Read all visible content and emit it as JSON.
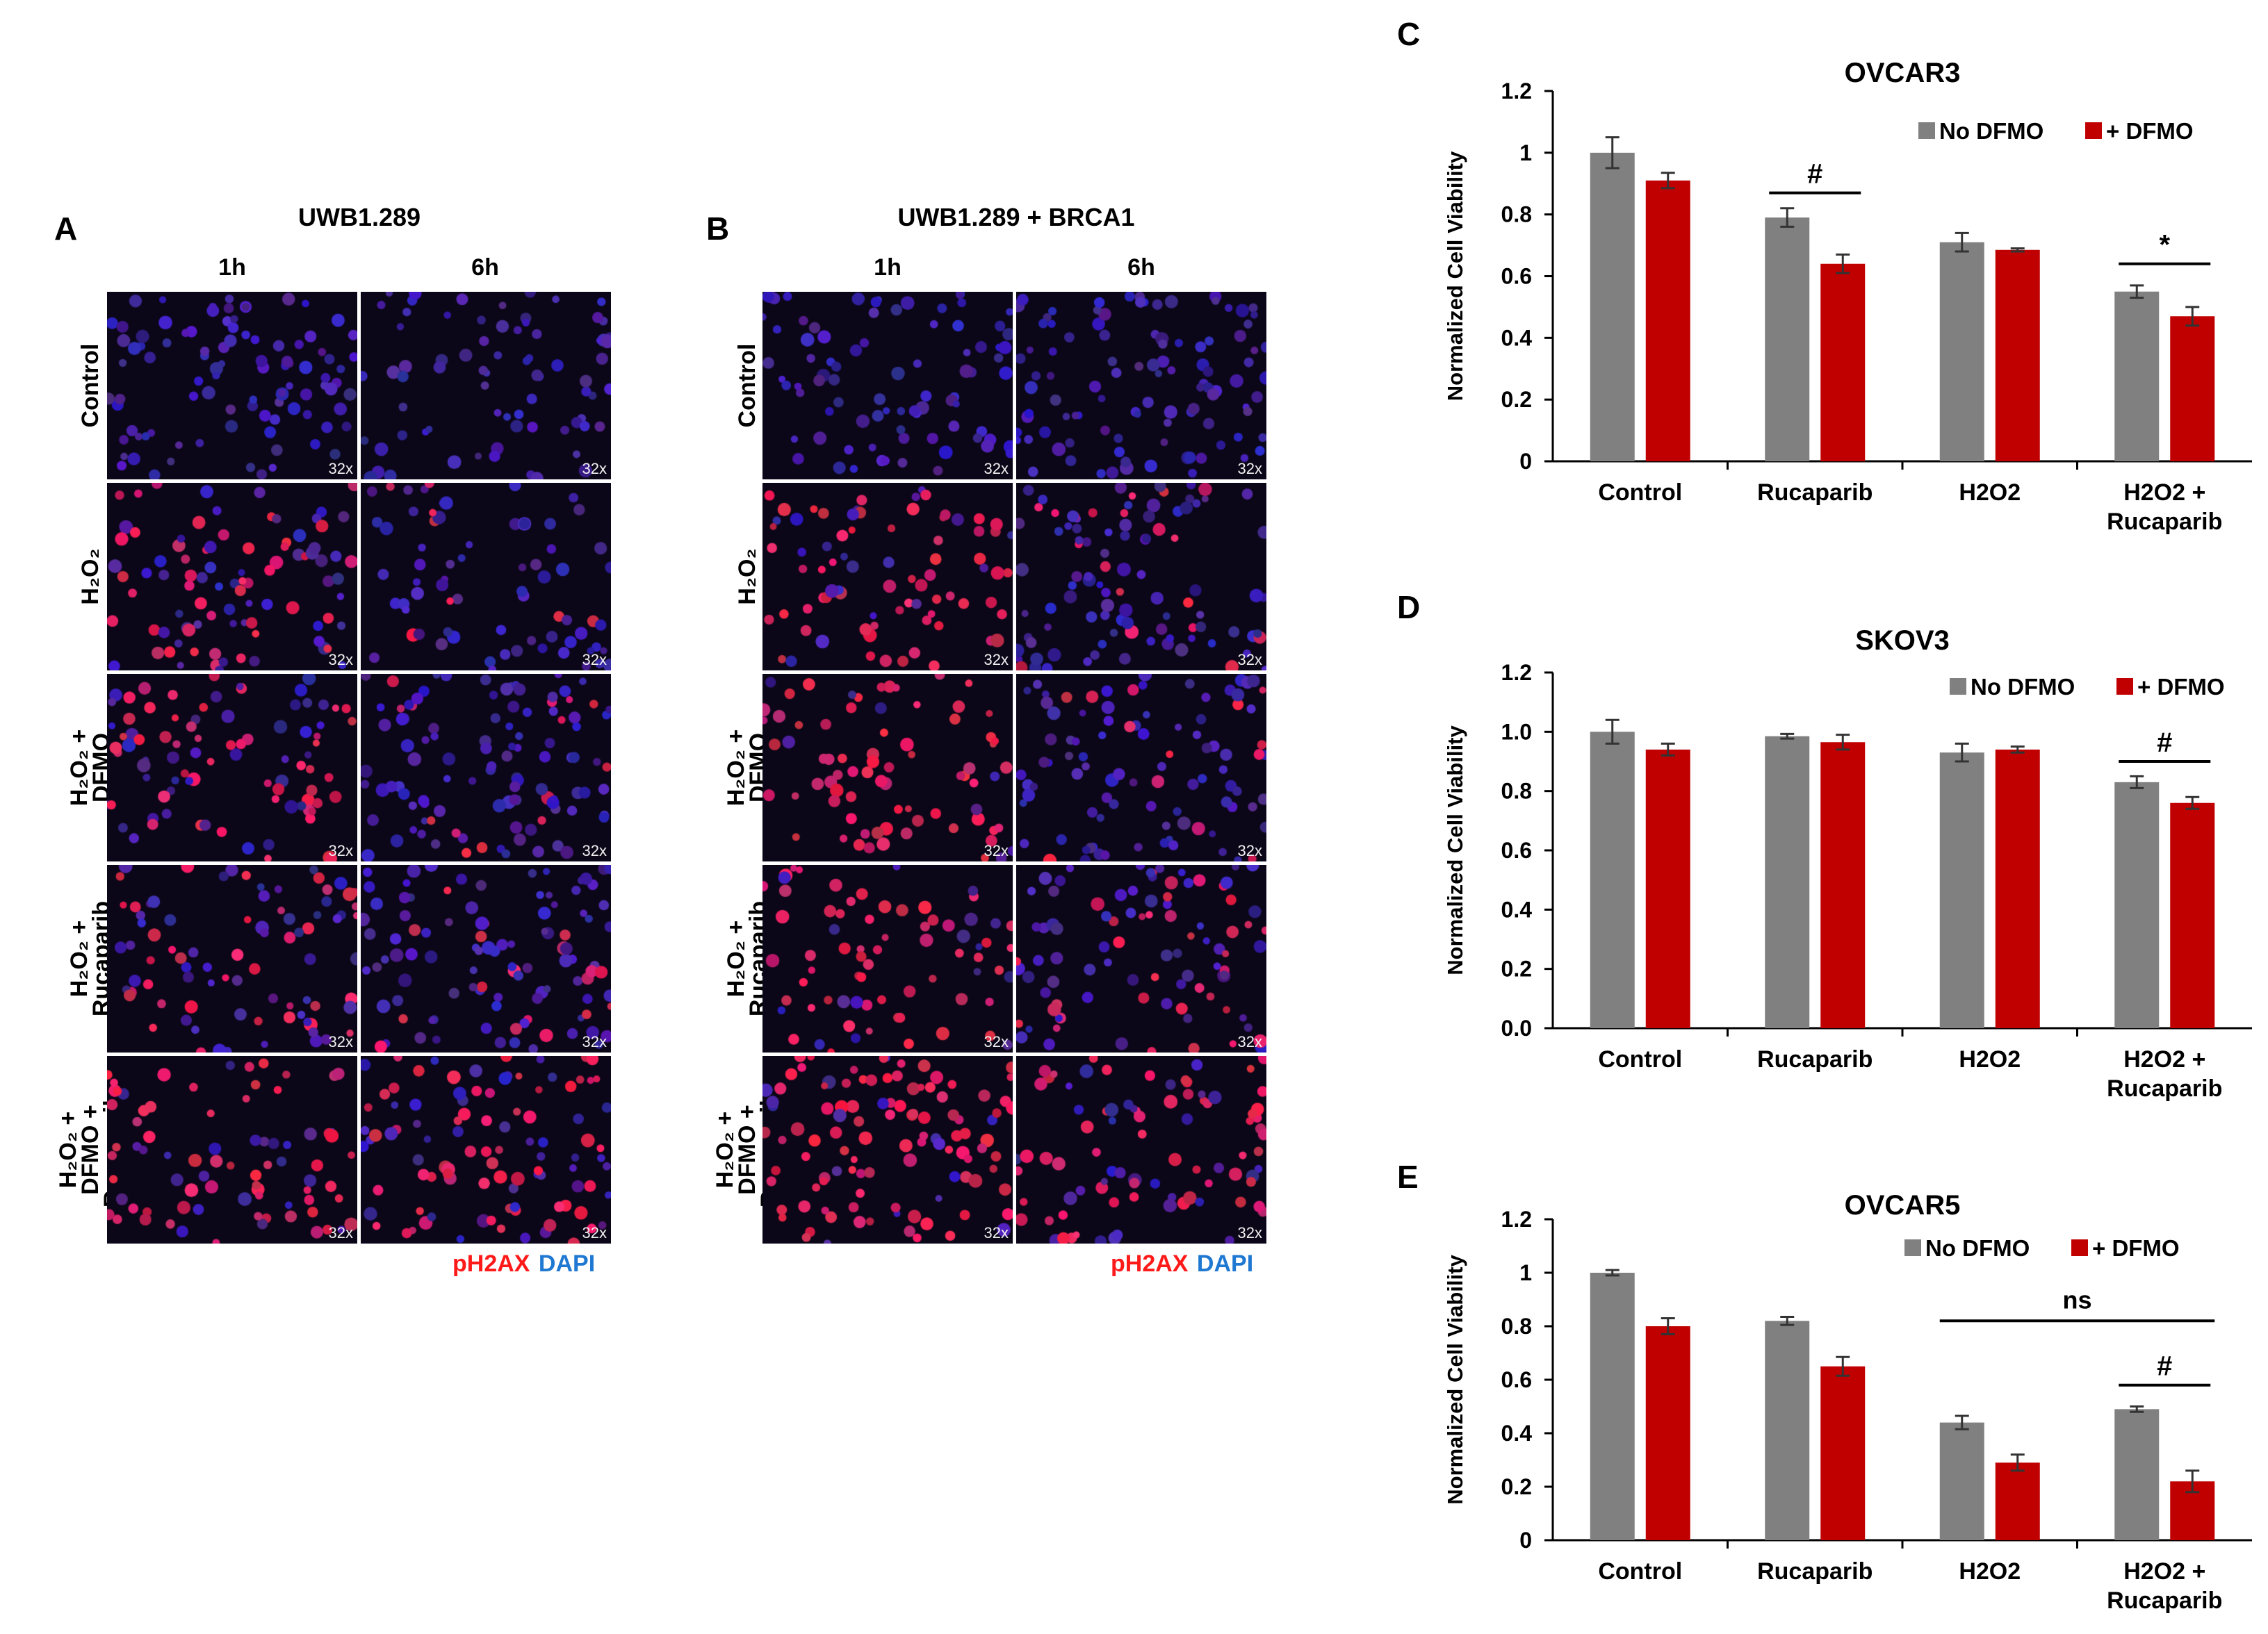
{
  "micrographs": {
    "A": {
      "letter": "A",
      "header": "UWB1.289",
      "times": [
        "1h",
        "6h"
      ],
      "rows": [
        {
          "label": [
            "Control"
          ],
          "intensity": [
            0.0,
            0.0
          ]
        },
        {
          "label": [
            "H₂O₂"
          ],
          "intensity": [
            0.55,
            0.05
          ]
        },
        {
          "label": [
            "H₂O₂ +",
            "DFMO"
          ],
          "intensity": [
            0.55,
            0.12
          ]
        },
        {
          "label": [
            "H₂O₂ +",
            "Rucaparib"
          ],
          "intensity": [
            0.5,
            0.2
          ]
        },
        {
          "label": [
            "H₂O₂ +",
            "DFMO +",
            "Rucaparib"
          ],
          "intensity": [
            0.8,
            0.55
          ]
        }
      ],
      "scale_label": "32x",
      "legend": {
        "red": "pH2AX",
        "blue": "DAPI"
      }
    },
    "B": {
      "letter": "B",
      "header": "UWB1.289 + BRCA1",
      "times": [
        "1h",
        "6h"
      ],
      "rows": [
        {
          "label": [
            "Control"
          ],
          "intensity": [
            0.0,
            0.0
          ]
        },
        {
          "label": [
            "H₂O₂"
          ],
          "intensity": [
            0.75,
            0.2
          ]
        },
        {
          "label": [
            "H₂O₂ +",
            "DFMO"
          ],
          "intensity": [
            0.8,
            0.15
          ]
        },
        {
          "label": [
            "H₂O₂ +",
            "Rucaparib"
          ],
          "intensity": [
            0.8,
            0.4
          ]
        },
        {
          "label": [
            "H₂O₂ +",
            "DFMO +",
            "Rucaparib"
          ],
          "intensity": [
            0.85,
            0.6
          ]
        }
      ],
      "scale_label": "32x",
      "legend": {
        "red": "pH2AX",
        "blue": "DAPI"
      }
    }
  },
  "colors": {
    "no_dfmo": "#808080",
    "dfmo": "#c00000",
    "ph2ax": "#ff1a1a",
    "dapi": "#1f78d1"
  },
  "chart_data": [
    {
      "panel": "C",
      "type": "bar",
      "title": "OVCAR3",
      "ylabel": "Normalized Cell Viability",
      "ylim": [
        0,
        1.2
      ],
      "yticks": [
        "0",
        "0.2",
        "0.4",
        "0.6",
        "0.8",
        "1",
        "1.2"
      ],
      "categories": [
        [
          "Control"
        ],
        [
          "Rucaparib"
        ],
        [
          "H2O2"
        ],
        [
          "H2O2 +",
          "Rucaparib"
        ]
      ],
      "series": [
        {
          "name": "No DFMO",
          "values": [
            1.0,
            0.79,
            0.71,
            0.55
          ],
          "errors": [
            0.05,
            0.03,
            0.03,
            0.02
          ]
        },
        {
          "name": "+ DFMO",
          "values": [
            0.91,
            0.64,
            0.685,
            0.47
          ],
          "errors": [
            0.025,
            0.03,
            0.005,
            0.03
          ]
        }
      ],
      "annotations": [
        {
          "text": "#",
          "category": 1,
          "level": 0.87
        },
        {
          "text": "*",
          "category": 3,
          "level": 0.64
        }
      ]
    },
    {
      "panel": "D",
      "type": "bar",
      "title": "SKOV3",
      "ylabel": "Normalized Cell Viability",
      "ylim": [
        0,
        1.2
      ],
      "yticks": [
        "0.0",
        "0.2",
        "0.4",
        "0.6",
        "0.8",
        "1.0",
        "1.2"
      ],
      "categories": [
        [
          "Control"
        ],
        [
          "Rucaparib"
        ],
        [
          "H2O2"
        ],
        [
          "H2O2 +",
          "Rucaparib"
        ]
      ],
      "series": [
        {
          "name": "No DFMO",
          "values": [
            1.0,
            0.985,
            0.93,
            0.83
          ],
          "errors": [
            0.04,
            0.008,
            0.03,
            0.02
          ]
        },
        {
          "name": "+ DFMO",
          "values": [
            0.94,
            0.965,
            0.94,
            0.76
          ],
          "errors": [
            0.02,
            0.025,
            0.01,
            0.02
          ]
        }
      ],
      "annotations": [
        {
          "text": "#",
          "category": 3,
          "level": 0.9
        }
      ]
    },
    {
      "panel": "E",
      "type": "bar",
      "title": "OVCAR5",
      "ylabel": "Normalized Cell Viability",
      "ylim": [
        0,
        1.2
      ],
      "yticks": [
        "0",
        "0.2",
        "0.4",
        "0.6",
        "0.8",
        "1",
        "1.2"
      ],
      "categories": [
        [
          "Control"
        ],
        [
          "Rucaparib"
        ],
        [
          "H2O2"
        ],
        [
          "H2O2 +",
          "Rucaparib"
        ]
      ],
      "series": [
        {
          "name": "No DFMO",
          "values": [
            1.0,
            0.82,
            0.44,
            0.49
          ],
          "errors": [
            0.01,
            0.015,
            0.025,
            0.01
          ]
        },
        {
          "name": "+ DFMO",
          "values": [
            0.8,
            0.65,
            0.29,
            0.22
          ],
          "errors": [
            0.03,
            0.035,
            0.03,
            0.04
          ]
        }
      ],
      "annotations": [
        {
          "text": "ns",
          "from_category": 2,
          "to_category": 3,
          "level": 0.82
        },
        {
          "text": "#",
          "category": 3,
          "level": 0.58
        }
      ]
    }
  ]
}
